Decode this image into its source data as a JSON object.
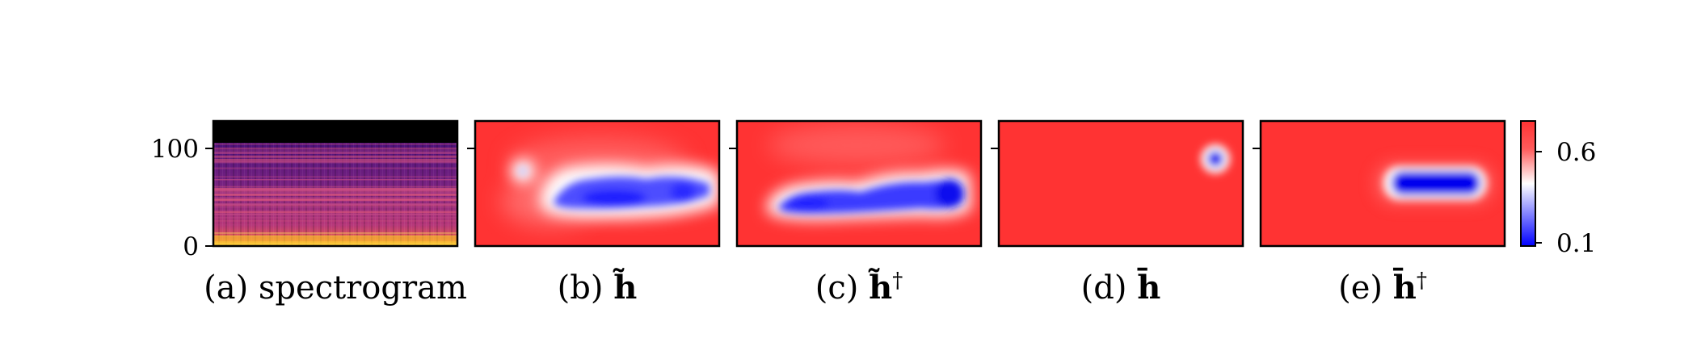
{
  "chart_data": [
    {
      "type": "heatmap",
      "caption": "(a) spectrogram",
      "content": "spectrogram",
      "yticks": [
        0,
        100
      ],
      "ylim": [
        0,
        128
      ]
    },
    {
      "type": "heatmap",
      "caption": "(b) h̃",
      "caption_prefix": "(b)",
      "caption_symbol": "h̃",
      "caption_sup": "",
      "content": "low-value blob region in center"
    },
    {
      "type": "heatmap",
      "caption": "(c) h̃†",
      "caption_prefix": "(c)",
      "caption_symbol": "h̃",
      "caption_sup": "†",
      "content": "low-value blob region lower center"
    },
    {
      "type": "heatmap",
      "caption": "(d) h̄",
      "caption_prefix": "(d)",
      "caption_symbol": "h̄",
      "caption_sup": "",
      "content": "small low-value spot upper right"
    },
    {
      "type": "heatmap",
      "caption": "(e) h̄†",
      "caption_prefix": "(e)",
      "caption_symbol": "h̄",
      "caption_sup": "†",
      "content": "low-value band right"
    }
  ],
  "colorbar": {
    "colormap": "bwr",
    "ticks": [
      0.6,
      0.1
    ],
    "range": [
      0.1,
      0.68
    ],
    "colors": {
      "low": "#0000ff",
      "mid": "#ffffff",
      "high": "#ff3333"
    }
  },
  "spectrogram_colors": {
    "background": "#000000",
    "low": "#3b0f70",
    "mid": "#b73779",
    "high": "#fcd225"
  }
}
